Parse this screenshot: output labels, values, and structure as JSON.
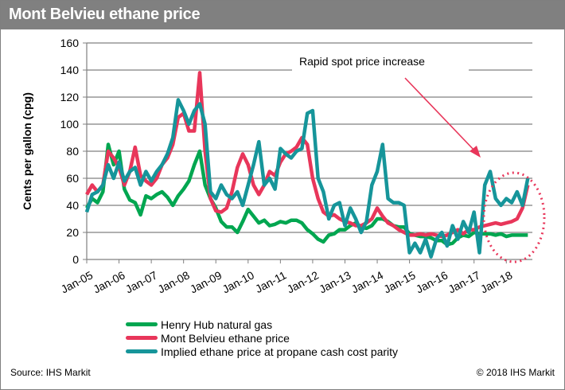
{
  "header": {
    "title": "Mont Belvieu ethane price"
  },
  "footer": {
    "source": "Source: IHS Markit",
    "copyright": "© 2018 IHS Markit"
  },
  "chart_data": {
    "type": "line",
    "title": "Mont Belvieu ethane price",
    "ylabel": "Cents per gallon (cpg)",
    "xlabel": "",
    "ylim": [
      0,
      160
    ],
    "yticks": [
      0,
      20,
      40,
      60,
      80,
      100,
      120,
      140,
      160
    ],
    "xtick_labels": [
      "Jan-05",
      "Jan-06",
      "Jan-07",
      "Jan-08",
      "Jan-09",
      "Jan-10",
      "Jan-11",
      "Jan-12",
      "Jan-13",
      "Jan-14",
      "Jan-15",
      "Jan-16",
      "Jan-17",
      "Jan-18"
    ],
    "grid": true,
    "legend_position": "bottom",
    "annotation": {
      "text": "Rapid spot price increase",
      "color": "#e8365a"
    },
    "x": [
      "2005-01",
      "2005-03",
      "2005-05",
      "2005-07",
      "2005-09",
      "2005-11",
      "2006-01",
      "2006-03",
      "2006-05",
      "2006-07",
      "2006-09",
      "2006-11",
      "2007-01",
      "2007-03",
      "2007-05",
      "2007-07",
      "2007-09",
      "2007-11",
      "2008-01",
      "2008-03",
      "2008-05",
      "2008-07",
      "2008-09",
      "2008-11",
      "2009-01",
      "2009-03",
      "2009-05",
      "2009-07",
      "2009-09",
      "2009-11",
      "2010-01",
      "2010-03",
      "2010-05",
      "2010-07",
      "2010-09",
      "2010-11",
      "2011-01",
      "2011-03",
      "2011-05",
      "2011-07",
      "2011-09",
      "2011-11",
      "2012-01",
      "2012-03",
      "2012-05",
      "2012-07",
      "2012-09",
      "2012-11",
      "2013-01",
      "2013-03",
      "2013-05",
      "2013-07",
      "2013-09",
      "2013-11",
      "2014-01",
      "2014-03",
      "2014-05",
      "2014-07",
      "2014-09",
      "2014-11",
      "2015-01",
      "2015-03",
      "2015-05",
      "2015-07",
      "2015-09",
      "2015-11",
      "2016-01",
      "2016-03",
      "2016-05",
      "2016-07",
      "2016-09",
      "2016-11",
      "2017-01",
      "2017-03",
      "2017-05",
      "2017-07",
      "2017-09",
      "2017-11",
      "2018-01",
      "2018-03",
      "2018-05",
      "2018-07",
      "2018-09"
    ],
    "series": [
      {
        "name": "Henry Hub natural gas",
        "color": "#00a650",
        "values": [
          38,
          45,
          42,
          50,
          85,
          70,
          80,
          52,
          44,
          42,
          33,
          47,
          45,
          48,
          50,
          46,
          40,
          47,
          52,
          58,
          70,
          80,
          55,
          45,
          38,
          28,
          24,
          24,
          20,
          28,
          37,
          32,
          27,
          29,
          25,
          26,
          28,
          27,
          29,
          29,
          27,
          22,
          19,
          15,
          13,
          18,
          19,
          22,
          22,
          25,
          27,
          24,
          23,
          25,
          30,
          30,
          28,
          25,
          24,
          24,
          19,
          18,
          17,
          17,
          16,
          14,
          14,
          11,
          12,
          16,
          18,
          17,
          20,
          19,
          19,
          19,
          18,
          19,
          17,
          18,
          18,
          18,
          18
        ]
      },
      {
        "name": "Mont Belvieu ethane price",
        "color": "#e8365a",
        "values": [
          48,
          55,
          50,
          55,
          80,
          75,
          68,
          55,
          65,
          83,
          62,
          58,
          55,
          60,
          70,
          75,
          85,
          105,
          108,
          95,
          95,
          138,
          80,
          45,
          36,
          35,
          38,
          50,
          68,
          78,
          70,
          55,
          48,
          55,
          65,
          62,
          72,
          78,
          80,
          83,
          90,
          85,
          60,
          45,
          35,
          32,
          33,
          30,
          28,
          27,
          25,
          25,
          27,
          30,
          38,
          32,
          27,
          25,
          22,
          20,
          18,
          18,
          19,
          18,
          19,
          18,
          17,
          18,
          20,
          22,
          19,
          22,
          22,
          24,
          25,
          26,
          27,
          26,
          27,
          28,
          30,
          38,
          55
        ]
      },
      {
        "name": "Implied ethane price at propane cash cost parity",
        "color": "#16959a",
        "values": [
          35,
          48,
          50,
          55,
          70,
          60,
          72,
          58,
          65,
          68,
          55,
          65,
          58,
          65,
          70,
          78,
          90,
          118,
          110,
          100,
          110,
          115,
          100,
          50,
          45,
          55,
          48,
          45,
          50,
          40,
          55,
          70,
          87,
          55,
          60,
          52,
          82,
          78,
          75,
          80,
          82,
          108,
          110,
          60,
          50,
          30,
          40,
          42,
          25,
          38,
          30,
          20,
          28,
          55,
          65,
          85,
          45,
          42,
          42,
          40,
          5,
          12,
          5,
          15,
          2,
          15,
          20,
          10,
          25,
          15,
          28,
          20,
          35,
          5,
          55,
          65,
          45,
          40,
          45,
          42,
          50,
          40,
          60
        ]
      }
    ]
  }
}
